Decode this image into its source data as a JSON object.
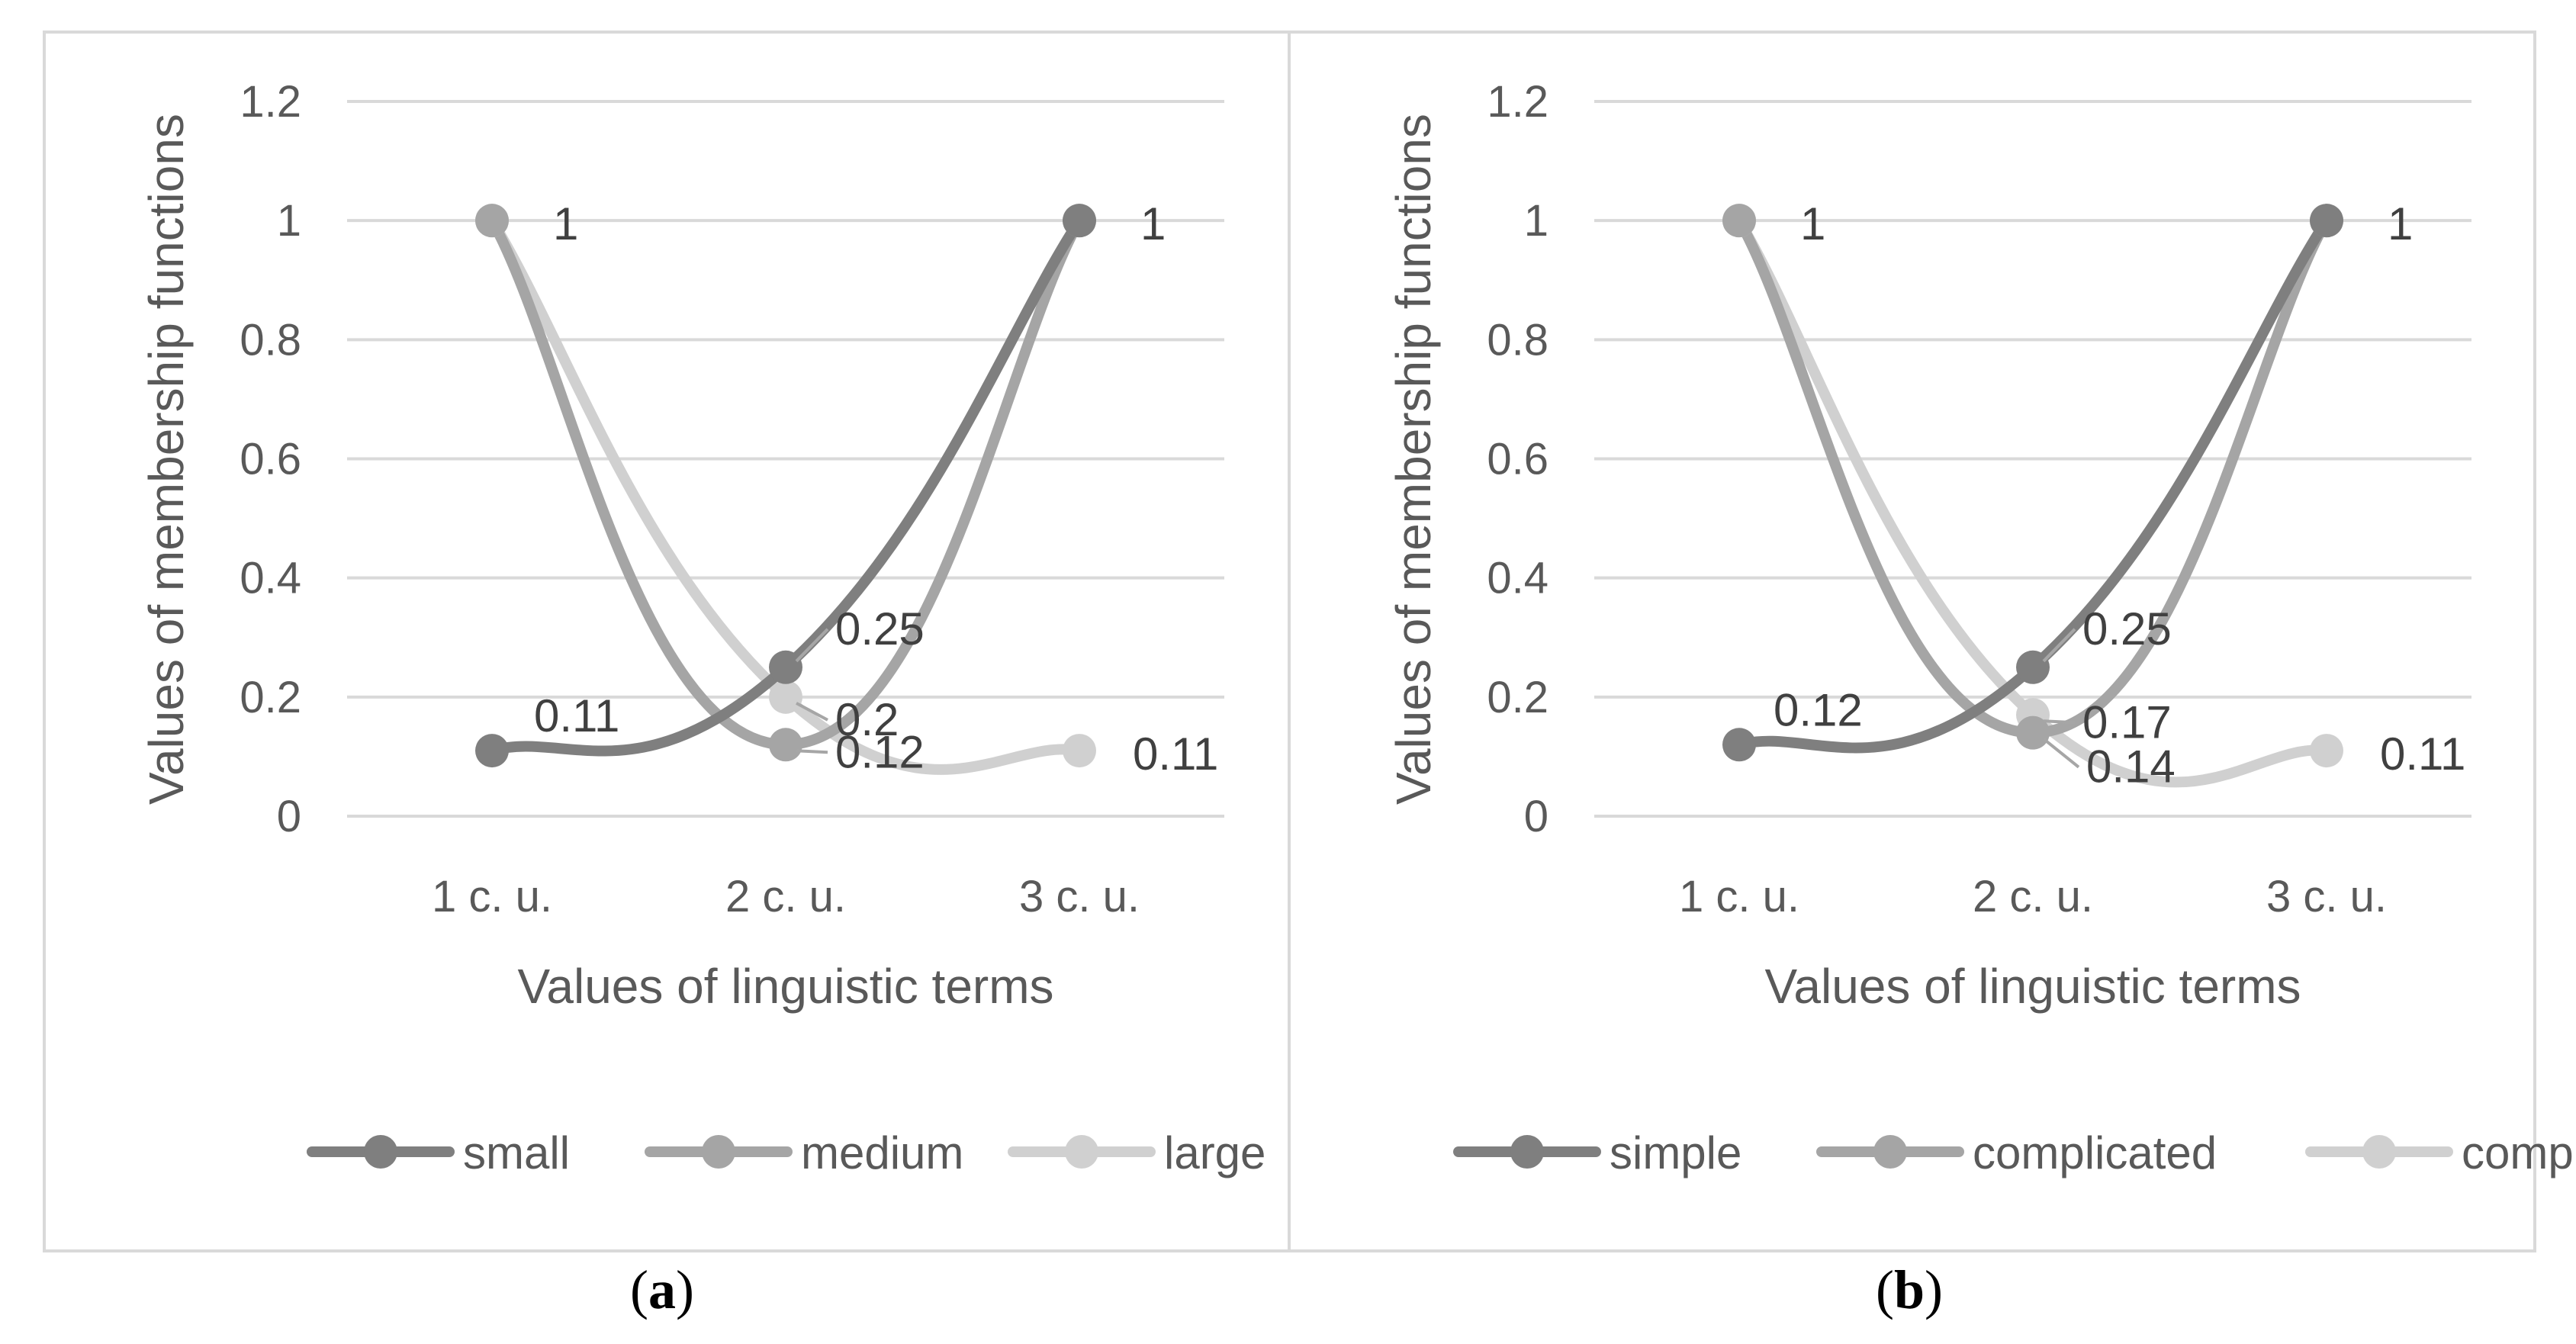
{
  "chart_data": [
    {
      "type": "line",
      "panel_label": "a",
      "categories": [
        "1 c. u.",
        "2 c. u.",
        "3 c. u."
      ],
      "xlabel": "Values of linguistic terms",
      "ylabel": "Values of membership functions",
      "ylim": [
        0,
        1.2
      ],
      "yticks": [
        "0",
        "0.2",
        "0.4",
        "0.6",
        "0.8",
        "1",
        "1.2"
      ],
      "grid": "horizontal",
      "legend_position": "bottom",
      "series": [
        {
          "name": "small",
          "values": [
            0.11,
            0.25,
            1
          ],
          "color": "#7f7f7f"
        },
        {
          "name": "medium",
          "values": [
            1,
            0.12,
            1
          ],
          "color": "#a5a5a5"
        },
        {
          "name": "large",
          "values": [
            1,
            0.2,
            0.11
          ],
          "color": "#d0d0d0"
        }
      ],
      "data_labels": [
        "1",
        "1",
        "0.11",
        "0.25",
        "0.2",
        "0.12",
        "0.11"
      ]
    },
    {
      "type": "line",
      "panel_label": "b",
      "categories": [
        "1 c. u.",
        "2 c. u.",
        "3 c. u."
      ],
      "xlabel": "Values of linguistic terms",
      "ylabel": "Values of membership functions",
      "ylim": [
        0,
        1.2
      ],
      "yticks": [
        "0",
        "0.2",
        "0.4",
        "0.6",
        "0.8",
        "1",
        "1.2"
      ],
      "grid": "horizontal",
      "legend_position": "bottom",
      "series": [
        {
          "name": "simple",
          "values": [
            0.12,
            0.25,
            1
          ],
          "color": "#7f7f7f"
        },
        {
          "name": "complicated",
          "values": [
            1,
            0.14,
            1
          ],
          "color": "#a5a5a5"
        },
        {
          "name": "complex",
          "values": [
            1,
            0.17,
            0.11
          ],
          "color": "#d0d0d0"
        }
      ],
      "data_labels": [
        "1",
        "1",
        "0.12",
        "0.25",
        "0.17",
        "0.14",
        "0.11"
      ]
    }
  ]
}
